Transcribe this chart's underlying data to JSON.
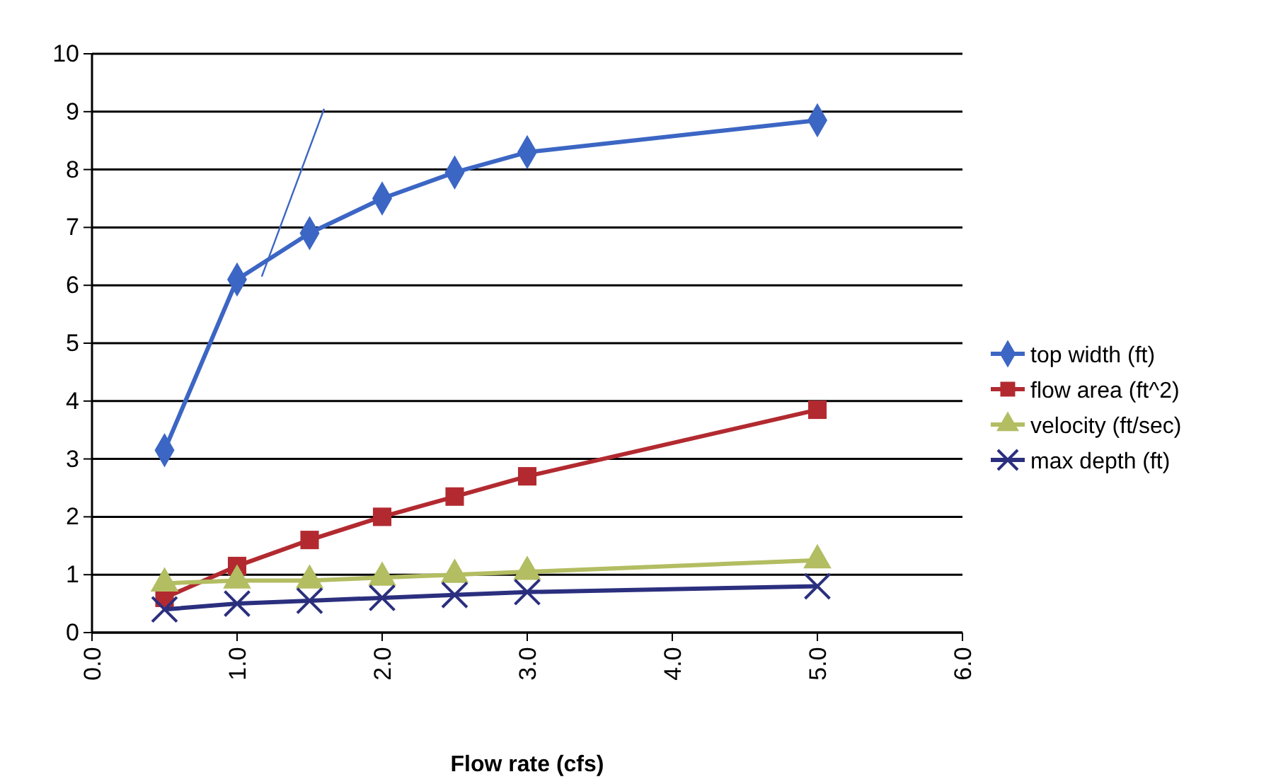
{
  "chart_data": {
    "type": "line",
    "xlabel": "Flow rate (cfs)",
    "xlim": [
      0,
      6
    ],
    "ylim": [
      0,
      10
    ],
    "xticks": [
      {
        "value": 0,
        "label": "0.0"
      },
      {
        "value": 1,
        "label": "1.0"
      },
      {
        "value": 2,
        "label": "2.0"
      },
      {
        "value": 3,
        "label": "3.0"
      },
      {
        "value": 4,
        "label": "4.0"
      },
      {
        "value": 5,
        "label": "5.0"
      },
      {
        "value": 6,
        "label": "6.0"
      }
    ],
    "yticks": [
      0,
      1,
      2,
      3,
      4,
      5,
      6,
      7,
      8,
      9,
      10
    ],
    "grid": "y",
    "legend": "right",
    "x": [
      0.5,
      1,
      1.5,
      2,
      2.5,
      3,
      5
    ],
    "series": [
      {
        "name": "top width (ft)",
        "color": "#3c66c4",
        "marker": "diamond",
        "values": [
          3.15,
          6.1,
          6.9,
          7.5,
          7.95,
          8.3,
          8.85
        ]
      },
      {
        "name": "flow area (ft^2)",
        "color": "#b22a30",
        "marker": "square",
        "values": [
          0.6,
          1.15,
          1.6,
          2.0,
          2.35,
          2.7,
          3.85
        ]
      },
      {
        "name": "velocity (ft/sec)",
        "color": "#b3bd62",
        "marker": "triangle",
        "values": [
          0.85,
          0.9,
          0.9,
          0.95,
          1.0,
          1.05,
          1.25
        ]
      },
      {
        "name": "max depth (ft)",
        "color": "#2b2f7e",
        "marker": "cross",
        "values": [
          0.4,
          0.5,
          0.55,
          0.6,
          0.65,
          0.7,
          0.8
        ]
      },
      {
        "color": "#3c66c4",
        "marker": "none",
        "x": [
          1.17,
          1.6
        ],
        "values": [
          6.15,
          9.05
        ]
      }
    ]
  }
}
